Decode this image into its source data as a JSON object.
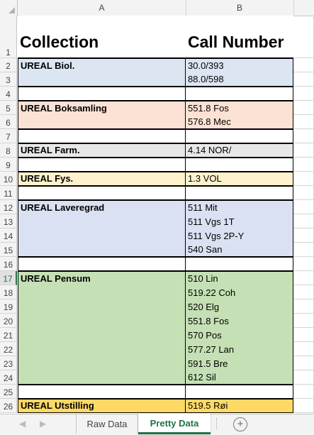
{
  "columns": [
    "A",
    "B"
  ],
  "colors": {
    "biol": "#dce6f2",
    "boks": "#fbe2d5",
    "farm": "#e7e7e7",
    "fys": "#fff2cc",
    "laver": "#dae1f2",
    "pensum": "#c5e0b4",
    "utstilling": "#ffd966",
    "accent": "#217346"
  },
  "rows": [
    {
      "n": "1",
      "a": "Collection",
      "b": "Call Number",
      "kind": "header"
    },
    {
      "n": "2",
      "a": "UREAL Biol.",
      "b": "30.0/393",
      "fill": "biol"
    },
    {
      "n": "3",
      "a": "",
      "b": "88.0/598",
      "fill": "biol"
    },
    {
      "n": "4",
      "a": "",
      "b": ""
    },
    {
      "n": "5",
      "a": "UREAL Boksamling",
      "b": "551.8 Fos",
      "fill": "boks"
    },
    {
      "n": "6",
      "a": "",
      "b": "576.8 Mec",
      "fill": "boks"
    },
    {
      "n": "7",
      "a": "",
      "b": ""
    },
    {
      "n": "8",
      "a": "UREAL Farm.",
      "b": "4.14 NOR/",
      "fill": "farm"
    },
    {
      "n": "9",
      "a": "",
      "b": ""
    },
    {
      "n": "10",
      "a": "UREAL Fys.",
      "b": "1.3 VOL",
      "fill": "fys"
    },
    {
      "n": "11",
      "a": "",
      "b": ""
    },
    {
      "n": "12",
      "a": "UREAL Laveregrad",
      "b": "511 Mit",
      "fill": "laver"
    },
    {
      "n": "13",
      "a": "",
      "b": "511 Vgs 1T",
      "fill": "laver"
    },
    {
      "n": "14",
      "a": "",
      "b": "511 Vgs 2P-Y",
      "fill": "laver"
    },
    {
      "n": "15",
      "a": "",
      "b": "540 San",
      "fill": "laver"
    },
    {
      "n": "16",
      "a": "",
      "b": ""
    },
    {
      "n": "17",
      "a": "UREAL Pensum",
      "b": "510 Lin",
      "fill": "pensum",
      "active": true
    },
    {
      "n": "18",
      "a": "",
      "b": "519.22 Coh",
      "fill": "pensum"
    },
    {
      "n": "19",
      "a": "",
      "b": "520 Elg",
      "fill": "pensum"
    },
    {
      "n": "20",
      "a": "",
      "b": "551.8 Fos",
      "fill": "pensum"
    },
    {
      "n": "21",
      "a": "",
      "b": "570 Pos",
      "fill": "pensum"
    },
    {
      "n": "22",
      "a": "",
      "b": "577.27 Lan",
      "fill": "pensum"
    },
    {
      "n": "23",
      "a": "",
      "b": "591.5 Bre",
      "fill": "pensum"
    },
    {
      "n": "24",
      "a": "",
      "b": "612 Sil",
      "fill": "pensum"
    },
    {
      "n": "25",
      "a": "",
      "b": ""
    },
    {
      "n": "26",
      "a": "UREAL Utstilling",
      "b": "519.5 Røi",
      "fill": "utstilling"
    }
  ],
  "tabs": {
    "raw": "Raw Data",
    "pretty": "Pretty Data",
    "prev_icon": "◀",
    "next_icon": "▶",
    "add_icon": "+"
  }
}
